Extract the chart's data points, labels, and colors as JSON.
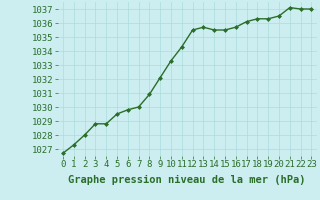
{
  "x": [
    0,
    1,
    2,
    3,
    4,
    5,
    6,
    7,
    8,
    9,
    10,
    11,
    12,
    13,
    14,
    15,
    16,
    17,
    18,
    19,
    20,
    21,
    22,
    23
  ],
  "y": [
    1026.7,
    1027.3,
    1028.0,
    1028.8,
    1028.8,
    1029.5,
    1029.8,
    1030.0,
    1030.9,
    1032.1,
    1033.3,
    1034.3,
    1035.5,
    1035.7,
    1035.5,
    1035.5,
    1035.7,
    1036.1,
    1036.3,
    1036.3,
    1036.5,
    1037.1,
    1037.0,
    1037.0
  ],
  "line_color": "#2a6e2a",
  "marker": "D",
  "marker_size": 2.0,
  "bg_color": "#cceef0",
  "grid_color": "#aadddd",
  "xlabel": "Graphe pression niveau de la mer (hPa)",
  "xlabel_fontsize": 7.5,
  "ylim": [
    1026.5,
    1037.5
  ],
  "yticks": [
    1027,
    1028,
    1029,
    1030,
    1031,
    1032,
    1033,
    1034,
    1035,
    1036,
    1037
  ],
  "xticks": [
    0,
    1,
    2,
    3,
    4,
    5,
    6,
    7,
    8,
    9,
    10,
    11,
    12,
    13,
    14,
    15,
    16,
    17,
    18,
    19,
    20,
    21,
    22,
    23
  ],
  "tick_fontsize": 6.5,
  "line_width": 1.0,
  "xlim": [
    -0.5,
    23.5
  ]
}
